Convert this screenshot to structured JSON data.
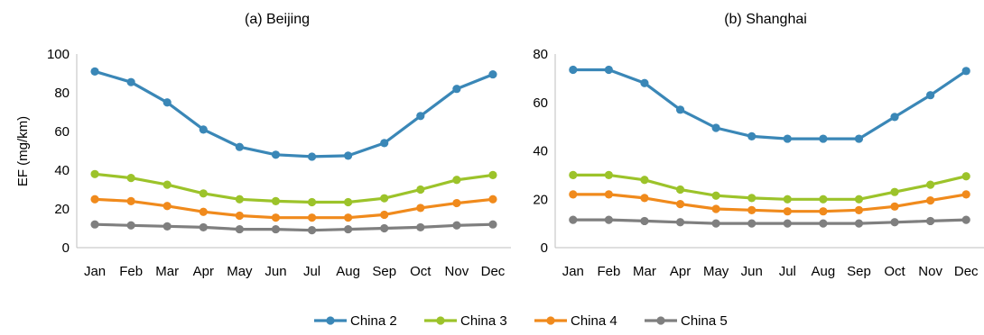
{
  "chart_data": [
    {
      "type": "line",
      "title": "(a) Beijing",
      "ylabel": "EF (mg/km)",
      "xlabel": "",
      "categories": [
        "Jan",
        "Feb",
        "Mar",
        "Apr",
        "May",
        "Jun",
        "Jul",
        "Aug",
        "Sep",
        "Oct",
        "Nov",
        "Dec"
      ],
      "ylim": [
        0,
        100
      ],
      "yticks": [
        0,
        20,
        40,
        60,
        80,
        100
      ],
      "grid": false,
      "series": [
        {
          "name": "China 2",
          "color": "#3a87b7",
          "values": [
            91,
            85.5,
            75,
            61,
            52,
            48,
            47,
            47.5,
            54,
            68,
            82,
            89.5
          ]
        },
        {
          "name": "China 3",
          "color": "#9cc32a",
          "values": [
            38,
            36,
            32.5,
            28,
            25,
            24,
            23.5,
            23.5,
            25.5,
            30,
            35,
            37.5
          ]
        },
        {
          "name": "China 4",
          "color": "#f08a1c",
          "values": [
            25,
            24,
            21.5,
            18.5,
            16.5,
            15.5,
            15.5,
            15.5,
            17,
            20.5,
            23,
            25
          ]
        },
        {
          "name": "China 5",
          "color": "#7f7f7f",
          "values": [
            12,
            11.5,
            11,
            10.5,
            9.5,
            9.5,
            9,
            9.5,
            10,
            10.5,
            11.5,
            12
          ]
        }
      ]
    },
    {
      "type": "line",
      "title": "(b) Shanghai",
      "ylabel": "",
      "xlabel": "",
      "categories": [
        "Jan",
        "Feb",
        "Mar",
        "Apr",
        "May",
        "Jun",
        "Jul",
        "Aug",
        "Sep",
        "Oct",
        "Nov",
        "Dec"
      ],
      "ylim": [
        0,
        80
      ],
      "yticks": [
        0,
        20,
        40,
        60,
        80
      ],
      "grid": false,
      "series": [
        {
          "name": "China 2",
          "color": "#3a87b7",
          "values": [
            73.5,
            73.5,
            68,
            57,
            49.5,
            46,
            45,
            45,
            45,
            54,
            63,
            73
          ]
        },
        {
          "name": "China 3",
          "color": "#9cc32a",
          "values": [
            30,
            30,
            28,
            24,
            21.5,
            20.5,
            20,
            20,
            20,
            23,
            26,
            29.5
          ]
        },
        {
          "name": "China 4",
          "color": "#f08a1c",
          "values": [
            22,
            22,
            20.5,
            18,
            16,
            15.5,
            15,
            15,
            15.5,
            17,
            19.5,
            22
          ]
        },
        {
          "name": "China 5",
          "color": "#7f7f7f",
          "values": [
            11.5,
            11.5,
            11,
            10.5,
            10,
            10,
            10,
            10,
            10,
            10.5,
            11,
            11.5
          ]
        }
      ]
    }
  ],
  "legend": {
    "position": "bottom",
    "items": [
      {
        "name": "China 2",
        "color": "#3a87b7"
      },
      {
        "name": "China 3",
        "color": "#9cc32a"
      },
      {
        "name": "China 4",
        "color": "#f08a1c"
      },
      {
        "name": "China 5",
        "color": "#7f7f7f"
      }
    ]
  }
}
